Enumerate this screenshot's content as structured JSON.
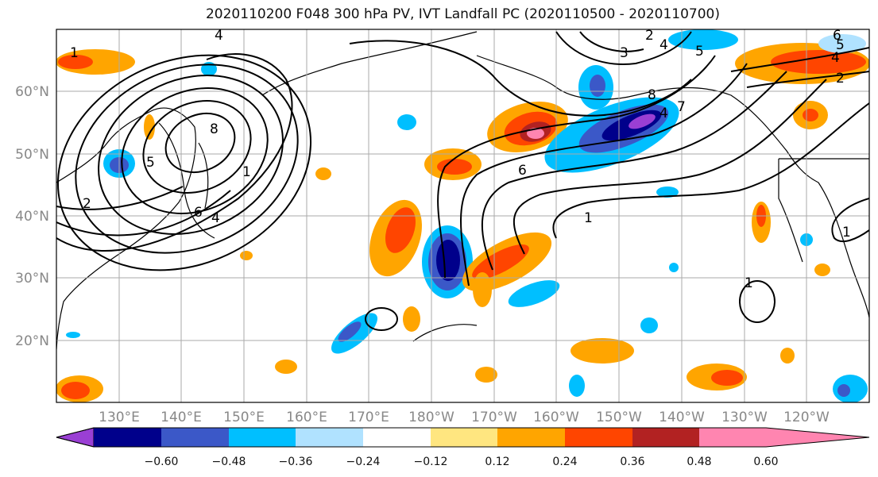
{
  "title": "2020110200 F048 300 hPa PV, IVT Landfall PC (2020110500 - 2020110700)",
  "map": {
    "lon_range": [
      120,
      250
    ],
    "lat_range": [
      10,
      70
    ],
    "lon_ticks": [
      "130°E",
      "140°E",
      "150°E",
      "160°E",
      "170°E",
      "180°W",
      "170°W",
      "160°W",
      "150°W",
      "140°W",
      "130°W",
      "120°W"
    ],
    "lat_ticks": [
      "20°N",
      "30°N",
      "40°N",
      "50°N",
      "60°N"
    ],
    "grid": true,
    "contour_labels": [
      "4",
      "1",
      "2",
      "8",
      "1",
      "6",
      "4",
      "5",
      "2",
      "3",
      "4",
      "5",
      "6",
      "1",
      "8",
      "4",
      "7",
      "4",
      "5",
      "2",
      "6",
      "1",
      "1"
    ]
  },
  "colorbar": {
    "labels": [
      "−0.60",
      "−0.48",
      "−0.36",
      "−0.24",
      "−0.12",
      "0.12",
      "0.24",
      "0.36",
      "0.48",
      "0.60"
    ],
    "colors": [
      "#9a3fd4",
      "#00008b",
      "#3b58c8",
      "#00bfff",
      "#b0e2ff",
      "#ffffff",
      "#ffe680",
      "#ffa500",
      "#ff4500",
      "#b22222",
      "#ff85b0"
    ],
    "extend": "both"
  }
}
